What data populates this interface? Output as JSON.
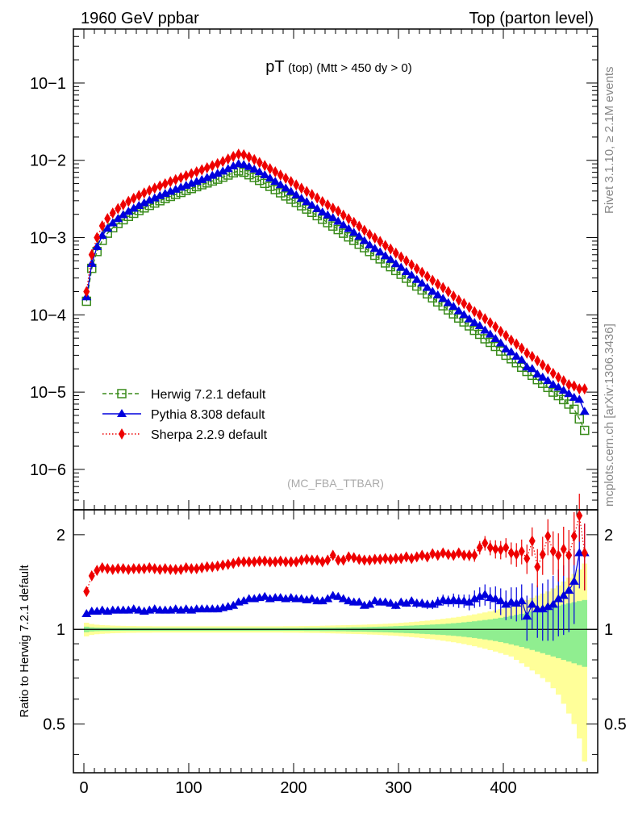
{
  "header": {
    "left": "1960 GeV ppbar",
    "right": "Top (parton level)"
  },
  "title": {
    "main": "pT",
    "sub": "(top)",
    "cut": "(Mtt > 450 dy > 0)"
  },
  "watermark": "(MC_FBA_TTBAR)",
  "side_text": {
    "rivet": "Rivet 3.1.10, ≥ 2.1M events",
    "mcplots": "mcplots.cern.ch [arXiv:1306.3436]"
  },
  "ratio_ylabel": "Ratio to Herwig 7.2.1 default",
  "colors": {
    "herwig": "#3a8c1c",
    "pythia": "#0000dd",
    "sherpa": "#ee0000",
    "band_inner": "#90ee90",
    "band_outer": "#ffff99"
  },
  "chart_data": [
    {
      "type": "line",
      "panel": "main",
      "yscale": "log",
      "xlim": [
        -10,
        490
      ],
      "ylim": [
        3e-07,
        0.5
      ],
      "y_ticks": [
        "10−6",
        "10−5",
        "10−4",
        "10−3",
        "10−2",
        "10−1"
      ],
      "legend": "bottom-left",
      "bin_width": 5,
      "x": [
        2.5,
        7.5,
        12.5,
        17.5,
        22.5,
        27.5,
        32.5,
        37.5,
        42.5,
        47.5,
        52.5,
        57.5,
        62.5,
        67.5,
        72.5,
        77.5,
        82.5,
        87.5,
        92.5,
        97.5,
        102.5,
        107.5,
        112.5,
        117.5,
        122.5,
        127.5,
        132.5,
        137.5,
        142.5,
        147.5,
        152.5,
        157.5,
        162.5,
        167.5,
        172.5,
        177.5,
        182.5,
        187.5,
        192.5,
        197.5,
        202.5,
        207.5,
        212.5,
        217.5,
        222.5,
        227.5,
        232.5,
        237.5,
        242.5,
        247.5,
        252.5,
        257.5,
        262.5,
        267.5,
        272.5,
        277.5,
        282.5,
        287.5,
        292.5,
        297.5,
        302.5,
        307.5,
        312.5,
        317.5,
        322.5,
        327.5,
        332.5,
        337.5,
        342.5,
        347.5,
        352.5,
        357.5,
        362.5,
        367.5,
        372.5,
        377.5,
        382.5,
        387.5,
        392.5,
        397.5,
        402.5,
        407.5,
        412.5,
        417.5,
        422.5,
        427.5,
        432.5,
        437.5,
        442.5,
        447.5,
        452.5,
        457.5,
        462.5,
        467.5,
        472.5,
        477.5
      ],
      "series": [
        {
          "name": "Herwig 7.2.1 default",
          "style": "dashed",
          "marker": "open-square",
          "values": [
            0.00015,
            0.0004,
            0.00066,
            0.00092,
            0.00114,
            0.00134,
            0.00152,
            0.0017,
            0.00188,
            0.00206,
            0.00224,
            0.00242,
            0.00261,
            0.0028,
            0.003,
            0.0032,
            0.00341,
            0.00362,
            0.00384,
            0.00407,
            0.00431,
            0.00456,
            0.00483,
            0.0051,
            0.0054,
            0.0057,
            0.00605,
            0.00645,
            0.0069,
            0.0073,
            0.007,
            0.0065,
            0.006,
            0.0055,
            0.00503,
            0.0046,
            0.00418,
            0.0038,
            0.00346,
            0.00314,
            0.00285,
            0.00258,
            0.00234,
            0.00212,
            0.00192,
            0.00173,
            0.00156,
            0.00141,
            0.00127,
            0.00114,
            0.00102,
            0.00092,
            0.00082,
            0.00074,
            0.00066,
            0.00059,
            0.00053,
            0.00047,
            0.00042,
            0.000375,
            0.000335,
            0.000298,
            0.000265,
            0.000236,
            0.00021,
            0.000187,
            0.000166,
            0.000147,
            0.000131,
            0.000116,
            0.000103,
            9.1e-05,
            8.1e-05,
            7.2e-05,
            6.3e-05,
            5.6e-05,
            4.9e-05,
            4.4e-05,
            3.9e-05,
            3.4e-05,
            3e-05,
            2.7e-05,
            2.4e-05,
            2.1e-05,
            1.85e-05,
            1.65e-05,
            1.45e-05,
            1.3e-05,
            1.15e-05,
            1e-05,
            9e-06,
            8e-06,
            7e-06,
            6e-06,
            4.5e-06,
            3.2e-06
          ]
        },
        {
          "name": "Pythia 8.308 default",
          "style": "solid",
          "marker": "triangle",
          "values": [
            0.00017,
            0.00046,
            0.00076,
            0.00106,
            0.00131,
            0.00154,
            0.00175,
            0.00196,
            0.00217,
            0.00238,
            0.00259,
            0.0028,
            0.00302,
            0.00324,
            0.00347,
            0.0037,
            0.00394,
            0.00419,
            0.00445,
            0.00472,
            0.005,
            0.0053,
            0.0056,
            0.00595,
            0.00635,
            0.00675,
            0.0072,
            0.00775,
            0.0084,
            0.009,
            0.00875,
            0.00825,
            0.00765,
            0.00705,
            0.00645,
            0.00585,
            0.0053,
            0.0048,
            0.00435,
            0.00393,
            0.00355,
            0.0032,
            0.0029,
            0.00262,
            0.00236,
            0.00213,
            0.00195,
            0.0018,
            0.00162,
            0.00145,
            0.0013,
            0.00116,
            0.00103,
            0.00091,
            0.0008,
            0.00072,
            0.00065,
            0.00058,
            0.00052,
            0.000455,
            0.00041,
            0.00036,
            0.000325,
            0.000285,
            0.000255,
            0.000225,
            0.0002,
            0.00018,
            0.000162,
            0.000143,
            0.000128,
            0.000112,
            0.0001,
            8.8e-05,
            7.9e-05,
            7.2e-05,
            6.3e-05,
            5.6e-05,
            4.9e-05,
            4.3e-05,
            3.6e-05,
            3.3e-05,
            2.9e-05,
            2.6e-05,
            2.1e-05,
            2e-05,
            1.7e-05,
            1.55e-05,
            1.4e-05,
            1.25e-05,
            1.15e-05,
            1.05e-05,
            9.5e-06,
            8.5e-06,
            8e-06,
            5.6e-06
          ]
        },
        {
          "name": "Sherpa 2.2.9 default",
          "style": "dotted",
          "marker": "diamond",
          "values": [
            0.0002,
            0.0006,
            0.001,
            0.00142,
            0.00176,
            0.00208,
            0.00237,
            0.00266,
            0.00294,
            0.00322,
            0.0035,
            0.00378,
            0.00407,
            0.00436,
            0.00466,
            0.00497,
            0.00529,
            0.00562,
            0.00596,
            0.00632,
            0.0067,
            0.0071,
            0.00755,
            0.008,
            0.0085,
            0.00905,
            0.00965,
            0.0104,
            0.0112,
            0.012,
            0.0118,
            0.011,
            0.0102,
            0.00935,
            0.00855,
            0.0078,
            0.0071,
            0.00645,
            0.00585,
            0.0053,
            0.0048,
            0.00435,
            0.00395,
            0.0036,
            0.00325,
            0.00292,
            0.00265,
            0.0024,
            0.0022,
            0.00195,
            0.00175,
            0.00157,
            0.0014,
            0.00124,
            0.0011,
            0.00099,
            0.00089,
            0.00079,
            0.00071,
            0.00063,
            0.00056,
            0.0005,
            0.000445,
            0.000395,
            0.000355,
            0.000315,
            0.00028,
            0.00025,
            0.000225,
            0.0002,
            0.000175,
            0.000155,
            0.00014,
            0.000125,
            0.00011,
            0.0001,
            8.9e-05,
            7.9e-05,
            7e-05,
            6.1e-05,
            5.4e-05,
            4.7e-05,
            4.2e-05,
            3.7e-05,
            3.2e-05,
            2.9e-05,
            2.55e-05,
            2.25e-05,
            2e-05,
            1.75e-05,
            1.55e-05,
            1.4e-05,
            1.25e-05,
            1.2e-05,
            1.1e-05,
            1.1e-05
          ]
        }
      ]
    },
    {
      "type": "line",
      "panel": "ratio",
      "ylabel": "Ratio to Herwig 7.2.1 default",
      "xlim": [
        -10,
        490
      ],
      "ylim": [
        0.35,
        2.4
      ],
      "x_ticks": [
        0,
        100,
        200,
        300,
        400
      ],
      "y_ticks": [
        0.5,
        1,
        2
      ],
      "band_inner": [
        0.02,
        0.015,
        0.013,
        0.012,
        0.012,
        0.011,
        0.011,
        0.011,
        0.011,
        0.011,
        0.011,
        0.011,
        0.011,
        0.011,
        0.011,
        0.011,
        0.011,
        0.011,
        0.011,
        0.011,
        0.011,
        0.011,
        0.011,
        0.011,
        0.011,
        0.011,
        0.011,
        0.011,
        0.011,
        0.011,
        0.011,
        0.011,
        0.011,
        0.011,
        0.011,
        0.011,
        0.011,
        0.011,
        0.011,
        0.011,
        0.011,
        0.011,
        0.012,
        0.012,
        0.012,
        0.013,
        0.013,
        0.013,
        0.014,
        0.014,
        0.015,
        0.016,
        0.016,
        0.017,
        0.018,
        0.019,
        0.02,
        0.021,
        0.022,
        0.024,
        0.025,
        0.027,
        0.028,
        0.03,
        0.032,
        0.034,
        0.036,
        0.038,
        0.04,
        0.043,
        0.046,
        0.049,
        0.053,
        0.057,
        0.061,
        0.066,
        0.071,
        0.076,
        0.082,
        0.089,
        0.096,
        0.104,
        0.112,
        0.121,
        0.13,
        0.14,
        0.15,
        0.16,
        0.17,
        0.18,
        0.19,
        0.2,
        0.21,
        0.22,
        0.23,
        0.24
      ],
      "band_outer": [
        0.05,
        0.04,
        0.035,
        0.032,
        0.03,
        0.028,
        0.027,
        0.026,
        0.025,
        0.025,
        0.024,
        0.024,
        0.024,
        0.023,
        0.023,
        0.023,
        0.023,
        0.023,
        0.023,
        0.023,
        0.023,
        0.023,
        0.023,
        0.023,
        0.023,
        0.023,
        0.023,
        0.023,
        0.023,
        0.023,
        0.023,
        0.023,
        0.023,
        0.023,
        0.023,
        0.023,
        0.023,
        0.023,
        0.024,
        0.024,
        0.024,
        0.025,
        0.025,
        0.026,
        0.026,
        0.027,
        0.028,
        0.029,
        0.03,
        0.031,
        0.032,
        0.033,
        0.034,
        0.035,
        0.037,
        0.038,
        0.04,
        0.042,
        0.044,
        0.046,
        0.049,
        0.052,
        0.055,
        0.058,
        0.062,
        0.066,
        0.07,
        0.075,
        0.08,
        0.085,
        0.09,
        0.096,
        0.102,
        0.109,
        0.116,
        0.124,
        0.132,
        0.141,
        0.15,
        0.16,
        0.17,
        0.18,
        0.2,
        0.22,
        0.24,
        0.26,
        0.28,
        0.3,
        0.32,
        0.35,
        0.38,
        0.42,
        0.46,
        0.5,
        0.55,
        0.62
      ],
      "series": [
        {
          "name": "Pythia 8.308 default",
          "values": [
            1.12,
            1.14,
            1.14,
            1.15,
            1.14,
            1.15,
            1.15,
            1.15,
            1.15,
            1.16,
            1.15,
            1.14,
            1.15,
            1.16,
            1.15,
            1.15,
            1.15,
            1.16,
            1.15,
            1.16,
            1.15,
            1.16,
            1.16,
            1.16,
            1.16,
            1.16,
            1.17,
            1.18,
            1.19,
            1.22,
            1.23,
            1.25,
            1.25,
            1.26,
            1.27,
            1.25,
            1.26,
            1.26,
            1.25,
            1.26,
            1.25,
            1.25,
            1.24,
            1.25,
            1.23,
            1.23,
            1.25,
            1.28,
            1.27,
            1.25,
            1.23,
            1.22,
            1.22,
            1.19,
            1.2,
            1.23,
            1.22,
            1.22,
            1.21,
            1.19,
            1.22,
            1.21,
            1.23,
            1.21,
            1.21,
            1.2,
            1.2,
            1.22,
            1.24,
            1.23,
            1.24,
            1.23,
            1.23,
            1.22,
            1.25,
            1.27,
            1.29,
            1.26,
            1.25,
            1.23,
            1.2,
            1.22,
            1.21,
            1.23,
            1.1,
            1.2,
            1.16,
            1.16,
            1.18,
            1.2,
            1.25,
            1.28,
            1.33,
            1.42,
            1.75,
            1.75
          ],
          "errors": [
            0.02,
            0.01,
            0.01,
            0.01,
            0.01,
            0.01,
            0.01,
            0.01,
            0.01,
            0.01,
            0.01,
            0.01,
            0.01,
            0.01,
            0.01,
            0.01,
            0.01,
            0.01,
            0.01,
            0.01,
            0.01,
            0.01,
            0.01,
            0.01,
            0.01,
            0.01,
            0.01,
            0.01,
            0.01,
            0.01,
            0.01,
            0.01,
            0.01,
            0.01,
            0.01,
            0.01,
            0.01,
            0.01,
            0.01,
            0.01,
            0.01,
            0.01,
            0.01,
            0.01,
            0.01,
            0.01,
            0.01,
            0.02,
            0.02,
            0.02,
            0.02,
            0.02,
            0.02,
            0.02,
            0.02,
            0.02,
            0.02,
            0.03,
            0.03,
            0.03,
            0.03,
            0.03,
            0.03,
            0.04,
            0.04,
            0.04,
            0.04,
            0.05,
            0.05,
            0.05,
            0.06,
            0.06,
            0.06,
            0.07,
            0.08,
            0.09,
            0.1,
            0.1,
            0.12,
            0.12,
            0.13,
            0.14,
            0.15,
            0.16,
            0.18,
            0.2,
            0.22,
            0.24,
            0.26,
            0.28,
            0.3,
            0.32,
            0.35,
            0.38,
            0.4,
            0.42
          ],
          "note_values_shown": "Ratio panel values are approximate reads of the plotted markers."
        },
        {
          "name": "Sherpa 2.2.9 default",
          "values": [
            1.32,
            1.48,
            1.54,
            1.57,
            1.56,
            1.55,
            1.56,
            1.56,
            1.55,
            1.56,
            1.56,
            1.56,
            1.57,
            1.56,
            1.55,
            1.56,
            1.55,
            1.55,
            1.55,
            1.57,
            1.56,
            1.56,
            1.57,
            1.58,
            1.58,
            1.59,
            1.6,
            1.61,
            1.62,
            1.64,
            1.64,
            1.64,
            1.64,
            1.65,
            1.65,
            1.64,
            1.64,
            1.65,
            1.64,
            1.64,
            1.64,
            1.66,
            1.67,
            1.66,
            1.66,
            1.64,
            1.66,
            1.72,
            1.66,
            1.66,
            1.7,
            1.69,
            1.67,
            1.66,
            1.66,
            1.67,
            1.67,
            1.68,
            1.67,
            1.68,
            1.68,
            1.7,
            1.68,
            1.7,
            1.72,
            1.7,
            1.74,
            1.72,
            1.75,
            1.73,
            1.72,
            1.75,
            1.72,
            1.72,
            1.72,
            1.82,
            1.88,
            1.82,
            1.8,
            1.79,
            1.82,
            1.75,
            1.73,
            1.77,
            1.68,
            1.91,
            1.58,
            1.73,
            1.98,
            1.77,
            1.72,
            1.8,
            1.72,
            1.98,
            2.3,
            1.75
          ],
          "errors": [
            0.02,
            0.01,
            0.01,
            0.01,
            0.01,
            0.01,
            0.01,
            0.01,
            0.01,
            0.01,
            0.01,
            0.01,
            0.01,
            0.01,
            0.01,
            0.01,
            0.01,
            0.01,
            0.01,
            0.01,
            0.01,
            0.01,
            0.01,
            0.01,
            0.01,
            0.01,
            0.01,
            0.01,
            0.01,
            0.01,
            0.01,
            0.01,
            0.01,
            0.01,
            0.01,
            0.01,
            0.01,
            0.01,
            0.01,
            0.01,
            0.01,
            0.01,
            0.01,
            0.01,
            0.01,
            0.01,
            0.01,
            0.02,
            0.02,
            0.02,
            0.02,
            0.02,
            0.02,
            0.02,
            0.02,
            0.02,
            0.02,
            0.03,
            0.03,
            0.03,
            0.03,
            0.03,
            0.03,
            0.04,
            0.04,
            0.04,
            0.04,
            0.05,
            0.05,
            0.05,
            0.06,
            0.06,
            0.06,
            0.07,
            0.08,
            0.09,
            0.1,
            0.1,
            0.12,
            0.12,
            0.13,
            0.14,
            0.15,
            0.16,
            0.18,
            0.2,
            0.22,
            0.24,
            0.26,
            0.28,
            0.3,
            0.32,
            0.35,
            0.38,
            0.4,
            0.42
          ]
        }
      ]
    }
  ]
}
